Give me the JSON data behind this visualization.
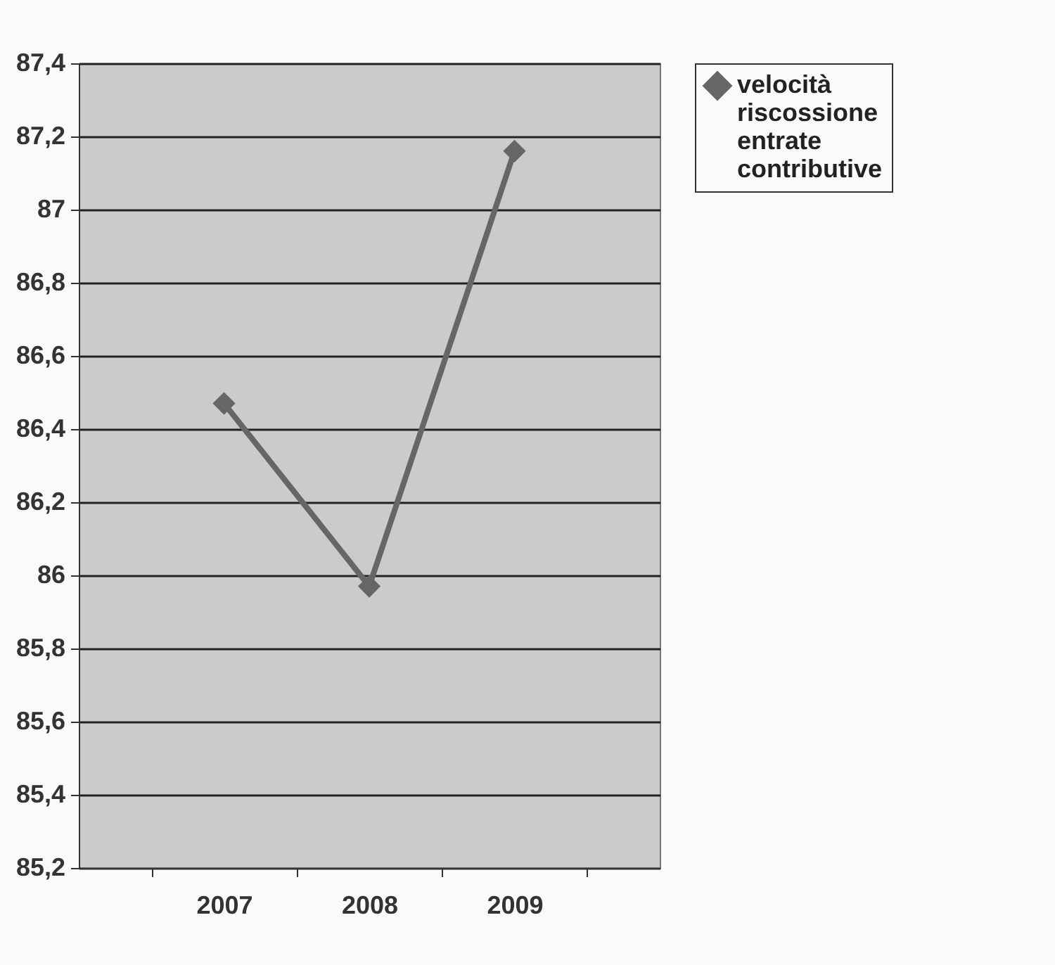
{
  "chart_data": {
    "type": "line",
    "categories": [
      "2007",
      "2008",
      "2009"
    ],
    "series": [
      {
        "name": "velocità riscossione entrate contributive",
        "color": "#666666",
        "values": [
          86.47,
          85.97,
          87.16
        ]
      }
    ],
    "ylim": [
      85.2,
      87.4
    ],
    "yticks": [
      {
        "value": 85.2,
        "label": "85,2"
      },
      {
        "value": 85.4,
        "label": "85,4"
      },
      {
        "value": 85.6,
        "label": "85,6"
      },
      {
        "value": 85.8,
        "label": "85,8"
      },
      86,
      {
        "value": 86.2,
        "label": "86,2"
      },
      {
        "value": 86.4,
        "label": "86,4"
      },
      {
        "value": 86.6,
        "label": "86,6"
      },
      {
        "value": 86.8,
        "label": "86,8"
      },
      87,
      {
        "value": 87.2,
        "label": "87,2"
      },
      {
        "value": 87.4,
        "label": "87,4"
      }
    ],
    "grid": "y",
    "legend": "right",
    "marker": "diamond",
    "line_style": "solid"
  }
}
